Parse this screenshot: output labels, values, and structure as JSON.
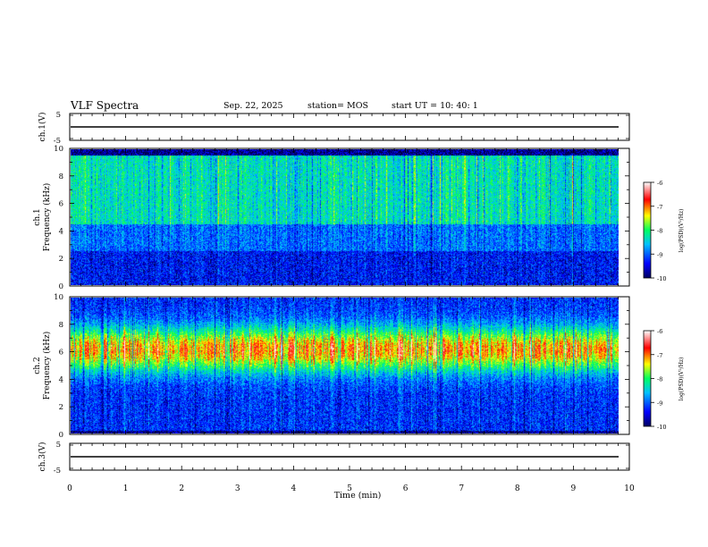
{
  "header": {
    "title": "VLF Spectra",
    "date": "Sep. 22, 2025",
    "station": "station= MOS",
    "start": "start UT =   10: 40: 1"
  },
  "chart_data": [
    {
      "type": "line",
      "panel": "ch1-waveform",
      "ylabel": "ch.1(V)",
      "ylim": [
        -5,
        5
      ],
      "yticks": [
        "5",
        "-5"
      ],
      "xlim": [
        0,
        10
      ],
      "series": [
        {
          "x": [
            0,
            9.8
          ],
          "y": [
            0,
            0
          ]
        }
      ]
    },
    {
      "type": "heatmap",
      "panel": "ch1-spectrogram",
      "ylabel": "ch.1 Frequency (kHz)",
      "ylim": [
        0,
        10
      ],
      "yticks": [
        "0",
        "2",
        "4",
        "6",
        "8",
        "10"
      ],
      "xlim": [
        0,
        9.8
      ],
      "colorbar": {
        "label": "log(PSD)(V²/Hz)",
        "range": [
          -10,
          -6
        ],
        "ticks": [
          "-6",
          "-7",
          "-8",
          "-9",
          "-10"
        ]
      },
      "description_levels": {
        "dominant_band_khz": [
          4,
          10
        ],
        "typical_log_psd": -8.5
      }
    },
    {
      "type": "heatmap",
      "panel": "ch2-spectrogram",
      "ylabel": "ch.2 Frequency (kHz)",
      "ylim": [
        0,
        10
      ],
      "yticks": [
        "0",
        "2",
        "4",
        "6",
        "8",
        "10"
      ],
      "xlim": [
        0,
        9.8
      ],
      "colorbar": {
        "label": "log(PSD)(V²/Hz)",
        "range": [
          -10,
          -6
        ],
        "ticks": [
          "-6",
          "-7",
          "-8",
          "-9",
          "-10"
        ]
      },
      "description_levels": {
        "dominant_band_khz": [
          5,
          7.5
        ],
        "typical_log_psd": -7
      }
    },
    {
      "type": "line",
      "panel": "ch3-waveform",
      "ylabel": "ch.3(V)",
      "ylim": [
        -5,
        5
      ],
      "yticks": [
        "5",
        "-5"
      ],
      "xlim": [
        0,
        10
      ],
      "series": [
        {
          "x": [
            0,
            9.8
          ],
          "y": [
            0,
            0
          ]
        }
      ]
    }
  ],
  "xaxis": {
    "label": "Time (min)",
    "ticks": [
      "0",
      "1",
      "2",
      "3",
      "4",
      "5",
      "6",
      "7",
      "8",
      "9",
      "10"
    ]
  },
  "colors": {
    "cmap": [
      "#000080",
      "#0000ff",
      "#00ffff",
      "#00ff00",
      "#ffff00",
      "#ff0000",
      "#ffffff"
    ]
  }
}
